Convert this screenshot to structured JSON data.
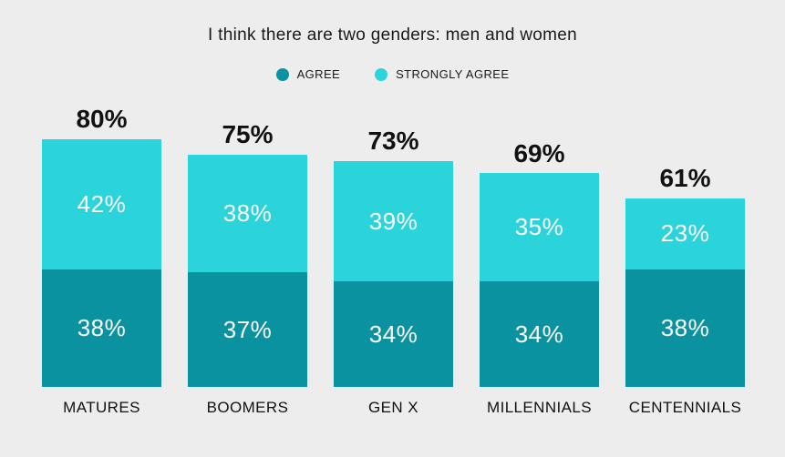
{
  "title": "I think there are two genders: men and women",
  "colors": {
    "background": "#EDEDED",
    "agree": "#0B92A0",
    "strongly_agree": "#2BD3DA",
    "title_text": "#1A1A1A",
    "bar_value_text": "#FFFFFF"
  },
  "legend": {
    "items": [
      {
        "label": "AGREE",
        "color": "#0B92A0"
      },
      {
        "label": "STRONGLY AGREE",
        "color": "#2BD3DA"
      }
    ]
  },
  "chart_data": {
    "type": "bar",
    "stacked": true,
    "title": "I think there are two genders: men and women",
    "categories": [
      "MATURES",
      "BOOMERS",
      "GEN X",
      "MILLENNIALS",
      "CENTENNIALS"
    ],
    "series": [
      {
        "name": "AGREE",
        "color": "#0B92A0",
        "values": [
          38,
          37,
          34,
          34,
          38
        ]
      },
      {
        "name": "STRONGLY AGREE",
        "color": "#2BD3DA",
        "values": [
          42,
          38,
          39,
          35,
          23
        ]
      }
    ],
    "totals": [
      80,
      75,
      73,
      69,
      61
    ],
    "value_suffix": "%",
    "ylim": [
      0,
      100
    ],
    "grid": false,
    "legend_position": "top",
    "segment_label_format": "value + %",
    "total_label_format": "value + % above bar"
  }
}
